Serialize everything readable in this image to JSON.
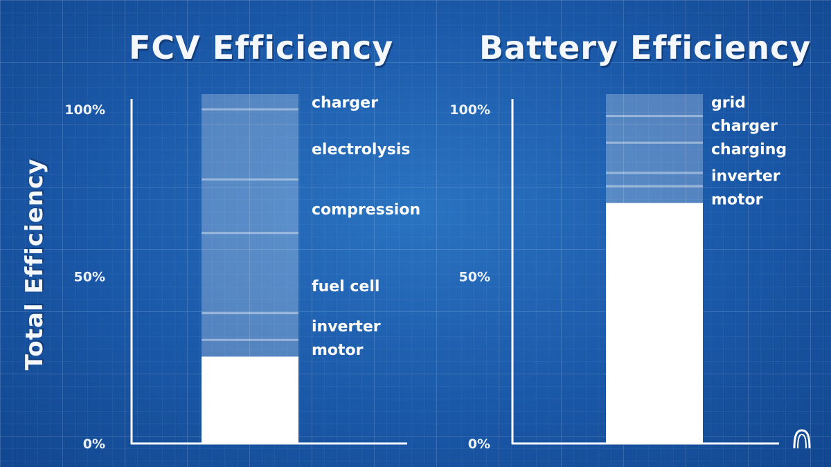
{
  "y_axis_label": "Total Efficiency",
  "chart_data": [
    {
      "type": "bar",
      "title": "FCV Efficiency",
      "ylabel": "Total Efficiency",
      "ylim": [
        0,
        100
      ],
      "y_ticks": [
        "0%",
        "50%",
        "100%"
      ],
      "final_efficiency": 26,
      "stages": [
        {
          "name": "charger",
          "remaining_after": 100
        },
        {
          "name": "electrolysis",
          "remaining_after": 79
        },
        {
          "name": "compression",
          "remaining_after": 63
        },
        {
          "name": "fuel cell",
          "remaining_after": 39
        },
        {
          "name": "inverter",
          "remaining_after": 31
        },
        {
          "name": "motor",
          "remaining_after": 26
        }
      ],
      "stage_label_values": [
        102,
        88,
        70,
        47,
        35,
        28
      ]
    },
    {
      "type": "bar",
      "title": "Battery Efficiency",
      "ylabel": "",
      "ylim": [
        0,
        100
      ],
      "y_ticks": [
        "0%",
        "50%",
        "100%"
      ],
      "final_efficiency": 72,
      "stages": [
        {
          "name": "grid",
          "remaining_after": 98
        },
        {
          "name": "charger",
          "remaining_after": 90
        },
        {
          "name": "charging",
          "remaining_after": 81
        },
        {
          "name": "inverter",
          "remaining_after": 77
        },
        {
          "name": "motor",
          "remaining_after": 72
        }
      ],
      "stage_label_values": [
        102,
        95,
        88,
        80,
        73
      ]
    }
  ],
  "colors": {
    "background": "#1d5fae",
    "bar_fill": "#ffffff",
    "loss_band": "rgba(255,255,255,0.25)",
    "loss_divider": "rgba(255,255,255,0.40)",
    "axis": "#ffffff"
  },
  "logo_icon": "arch-logo-icon"
}
